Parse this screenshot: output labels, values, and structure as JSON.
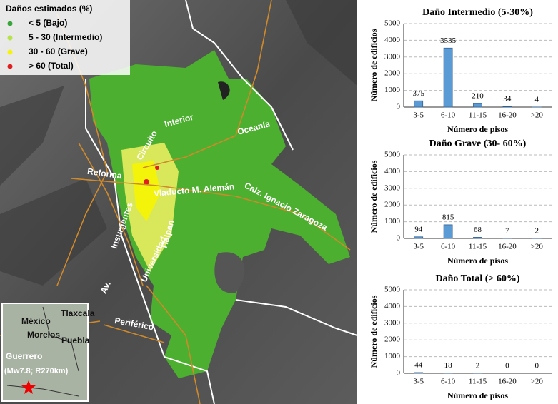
{
  "map": {
    "legend": {
      "title": "Daños estimados (%)",
      "items": [
        {
          "label": "< 5 (Bajo)",
          "color": "#3aa53a"
        },
        {
          "label": "5 - 30 (Intermedio)",
          "color": "#b7e34a"
        },
        {
          "label": "30 - 60 (Grave)",
          "color": "#f4f40a"
        },
        {
          "label": "> 60 (Total)",
          "color": "#e02020"
        }
      ]
    },
    "roads": [
      "Interior",
      "Oceanía",
      "Reforma",
      "Circuito",
      "Viaducto M. Alemán",
      "Calz. Ignacio Zaragoza",
      "Insurgentes",
      "Universidad",
      "Tlalpan",
      "Av.",
      "Periférico"
    ],
    "inset": [
      "México",
      "Tlaxcala",
      "Morelos",
      "Puebla",
      "Guerrero",
      "(Mw7.8; R270km)"
    ]
  },
  "chart_data": [
    {
      "type": "bar",
      "title": "Daño Intermedio (5-30%)",
      "y_label": "Número de edificios",
      "x_label": "Número de pisos",
      "categories": [
        "3-5",
        "6-10",
        "11-15",
        "16-20",
        ">20"
      ],
      "values": [
        375,
        3535,
        210,
        34,
        4
      ],
      "color": "#5b9bd5",
      "ylim": [
        0,
        5000
      ],
      "yticks": [
        0,
        1000,
        2000,
        3000,
        4000,
        5000
      ],
      "grid": true
    },
    {
      "type": "bar",
      "title": "Daño Grave (30- 60%)",
      "y_label": "Número de edificios",
      "x_label": "Número de pisos",
      "categories": [
        "3-5",
        "6-10",
        "11-15",
        "16-20",
        ">20"
      ],
      "values": [
        94,
        815,
        68,
        7,
        2
      ],
      "color": "#5b9bd5",
      "ylim": [
        0,
        5000
      ],
      "yticks": [
        0,
        1000,
        2000,
        3000,
        4000,
        5000
      ],
      "grid": true
    },
    {
      "type": "bar",
      "title": "Daño Total (> 60%)",
      "y_label": "Número de edificios",
      "x_label": "Número de pisos",
      "categories": [
        "3-5",
        "6-10",
        "11-15",
        "16-20",
        ">20"
      ],
      "values": [
        44,
        18,
        2,
        0,
        0
      ],
      "color": "#5b9bd5",
      "ylim": [
        0,
        5000
      ],
      "yticks": [
        0,
        1000,
        2000,
        3000,
        4000,
        5000
      ],
      "grid": true
    }
  ]
}
